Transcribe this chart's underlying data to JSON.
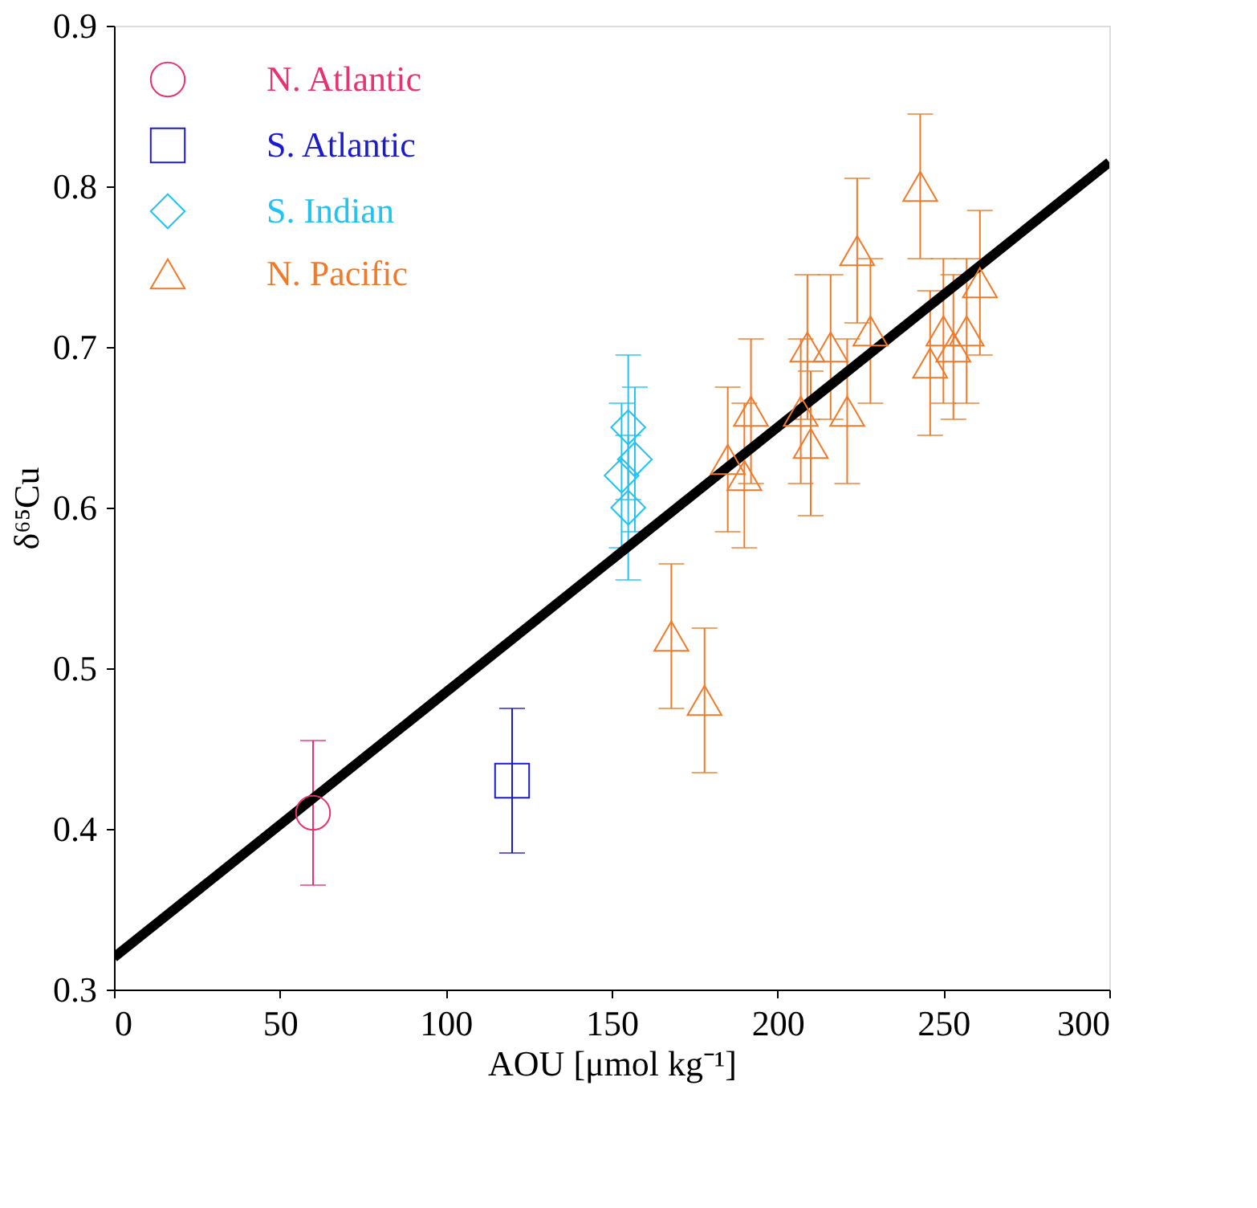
{
  "chart_data": {
    "type": "scatter",
    "xlabel": "AOU [μmol kg⁻¹]",
    "ylabel": "δ⁶⁵Cu",
    "xlim": [
      0,
      300
    ],
    "xticks": [
      0,
      50,
      100,
      150,
      200,
      250,
      300
    ],
    "ylim": [
      0.3,
      0.9
    ],
    "yticks": [
      0.3,
      0.4,
      0.5,
      0.6,
      0.7,
      0.8,
      0.9
    ],
    "grid": false,
    "legend": "top left",
    "series": [
      {
        "name": "N. Atlantic",
        "color": "#e8336e",
        "marker": "circle",
        "x": [
          60
        ],
        "values": [
          0.41
        ],
        "errors": [
          0.045
        ]
      },
      {
        "name": "S. Atlantic",
        "color": "#1a1ad0",
        "marker": "square",
        "x": [
          120
        ],
        "values": [
          0.43
        ],
        "errors": [
          0.045
        ]
      },
      {
        "name": "S. Indian",
        "color": "#22c3f0",
        "marker": "diamond",
        "x": [
          155,
          157,
          153,
          155
        ],
        "values": [
          0.65,
          0.63,
          0.62,
          0.6
        ],
        "errors": [
          0.045,
          0.045,
          0.045,
          0.045
        ]
      },
      {
        "name": "N. Pacific",
        "color": "#f07a2a",
        "marker": "triangle",
        "x": [
          168,
          178,
          185,
          190,
          192,
          207,
          209,
          210,
          216,
          221,
          224,
          228,
          243,
          246,
          250,
          253,
          257,
          261
        ],
        "values": [
          0.52,
          0.48,
          0.63,
          0.62,
          0.66,
          0.66,
          0.7,
          0.64,
          0.7,
          0.66,
          0.76,
          0.71,
          0.8,
          0.69,
          0.71,
          0.7,
          0.71,
          0.74
        ],
        "errors": [
          0.045,
          0.045,
          0.045,
          0.045,
          0.045,
          0.045,
          0.045,
          0.045,
          0.045,
          0.045,
          0.045,
          0.045,
          0.045,
          0.045,
          0.045,
          0.045,
          0.045,
          0.045
        ]
      },
      {
        "type": "line",
        "color": "#000000",
        "marker": "none",
        "x": [
          0,
          300
        ],
        "values": [
          0.32,
          0.815
        ]
      }
    ]
  }
}
